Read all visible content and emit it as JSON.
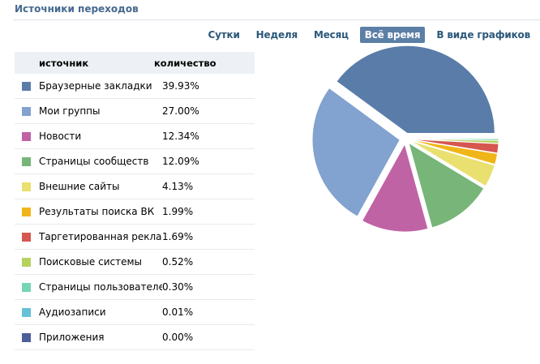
{
  "header": {
    "title": "Источники переходов"
  },
  "tabs": [
    {
      "label": "Сутки",
      "active": false
    },
    {
      "label": "Неделя",
      "active": false
    },
    {
      "label": "Месяц",
      "active": false
    },
    {
      "label": "Всё время",
      "active": true
    },
    {
      "label": "В виде графиков",
      "active": false
    }
  ],
  "table": {
    "col_source": "источник",
    "col_count": "количество",
    "rows": [
      {
        "label": "Браузерные закладки",
        "value": "39.93%",
        "color": "#5a7ca8"
      },
      {
        "label": "Мои группы",
        "value": "27.00%",
        "color": "#82a2cf"
      },
      {
        "label": "Новости",
        "value": "12.34%",
        "color": "#c063a5"
      },
      {
        "label": "Страницы сообществ",
        "value": "12.09%",
        "color": "#77b578"
      },
      {
        "label": "Внешние сайты",
        "value": "4.13%",
        "color": "#e9e070"
      },
      {
        "label": "Результаты поиска ВК",
        "value": "1.99%",
        "color": "#f0b518"
      },
      {
        "label": "Таргетированная реклама",
        "value": "1.69%",
        "color": "#d5574f"
      },
      {
        "label": "Поисковые системы",
        "value": "0.52%",
        "color": "#b6d25e"
      },
      {
        "label": "Страницы пользователей",
        "value": "0.30%",
        "color": "#76d5b2"
      },
      {
        "label": "Аудиозаписи",
        "value": "0.01%",
        "color": "#66c1d8"
      },
      {
        "label": "Приложения",
        "value": "0.00%",
        "color": "#4b5f9a"
      }
    ]
  },
  "chart_data": {
    "type": "pie",
    "categories": [
      "Браузерные закладки",
      "Мои группы",
      "Новости",
      "Страницы сообществ",
      "Внешние сайты",
      "Результаты поиска ВК",
      "Таргетированная реклама",
      "Поисковые системы",
      "Страницы пользователей",
      "Аудиозаписи",
      "Приложения"
    ],
    "values": [
      39.93,
      27.0,
      12.34,
      12.09,
      4.13,
      1.99,
      1.69,
      0.52,
      0.3,
      0.01,
      0.0
    ],
    "colors": [
      "#5a7ca8",
      "#82a2cf",
      "#c063a5",
      "#77b578",
      "#e9e070",
      "#f0b518",
      "#d5574f",
      "#b6d25e",
      "#76d5b2",
      "#66c1d8",
      "#4b5f9a"
    ],
    "exploded": true
  }
}
